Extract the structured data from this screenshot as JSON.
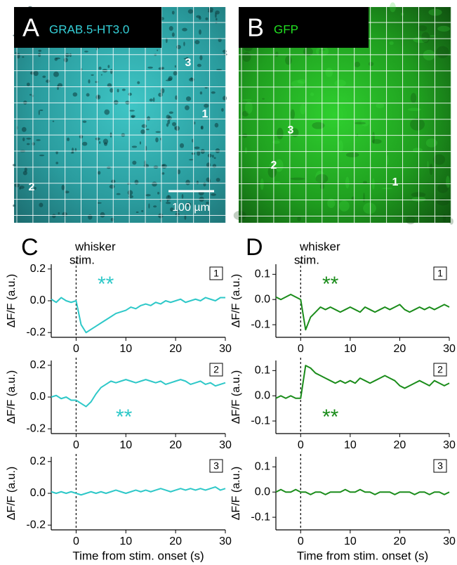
{
  "images": [
    {
      "letter": "A",
      "label": "GRAB.5-HT3.0",
      "rois": [
        "3",
        "1",
        "2"
      ],
      "scale_bar": "100 µm"
    },
    {
      "letter": "B",
      "label": "GFP",
      "rois": [
        "3",
        "2",
        "1"
      ]
    }
  ],
  "chart_data": [
    {
      "type": "line",
      "panel_label": "C",
      "annotation": [
        "whisker",
        "stim."
      ],
      "roi_label": "1",
      "significance": "**",
      "ylabel": "ΔF/F (a.u.)",
      "x": [
        -5,
        -4,
        -3,
        -2,
        -1,
        0,
        1,
        2,
        3,
        4,
        5,
        6,
        7,
        8,
        9,
        10,
        11,
        12,
        13,
        14,
        15,
        16,
        17,
        18,
        19,
        20,
        21,
        22,
        23,
        24,
        25,
        26,
        27,
        28,
        29,
        30
      ],
      "series": [
        {
          "color": "#2ec8c8",
          "values": [
            0.01,
            -0.01,
            0.02,
            0.0,
            -0.01,
            0.0,
            -0.15,
            -0.2,
            -0.18,
            -0.16,
            -0.14,
            -0.12,
            -0.1,
            -0.08,
            -0.07,
            -0.06,
            -0.04,
            -0.05,
            -0.03,
            -0.02,
            -0.03,
            -0.01,
            -0.02,
            0.0,
            -0.01,
            0.0,
            0.01,
            -0.01,
            0.0,
            0.01,
            0.0,
            0.02,
            0.01,
            0.0,
            0.02,
            0.02
          ]
        }
      ],
      "xlim": [
        -5,
        30
      ],
      "xticks": [
        0,
        10,
        20,
        30
      ],
      "ylim": [
        -0.23,
        0.23
      ],
      "yticks": [
        -0.2,
        {
          "value": 0,
          "label": "0.0"
        },
        0.2
      ],
      "stim_onset": 0
    },
    {
      "type": "line",
      "roi_label": "2",
      "significance": "**",
      "ylabel": "ΔF/F (a.u.)",
      "x": [
        -5,
        -4,
        -3,
        -2,
        -1,
        0,
        1,
        2,
        3,
        4,
        5,
        6,
        7,
        8,
        9,
        10,
        11,
        12,
        13,
        14,
        15,
        16,
        17,
        18,
        19,
        20,
        21,
        22,
        23,
        24,
        25,
        26,
        27,
        28,
        29,
        30
      ],
      "series": [
        {
          "color": "#2ec8c8",
          "values": [
            0.0,
            0.01,
            -0.01,
            0.0,
            -0.02,
            -0.02,
            -0.04,
            -0.06,
            -0.03,
            0.02,
            0.06,
            0.08,
            0.1,
            0.09,
            0.1,
            0.11,
            0.1,
            0.09,
            0.1,
            0.11,
            0.1,
            0.09,
            0.1,
            0.08,
            0.09,
            0.1,
            0.11,
            0.1,
            0.08,
            0.09,
            0.1,
            0.08,
            0.09,
            0.07,
            0.08,
            0.09
          ]
        }
      ],
      "xlim": [
        -5,
        30
      ],
      "xticks": [
        0,
        10,
        20,
        30
      ],
      "ylim": [
        -0.23,
        0.23
      ],
      "yticks": [
        -0.2,
        {
          "value": 0,
          "label": "0.0"
        },
        0.2
      ],
      "stim_onset": 0
    },
    {
      "type": "line",
      "roi_label": "3",
      "ylabel": "ΔF/F (a.u.)",
      "xlabel": "Time from stim. onset (s)",
      "x": [
        -5,
        -4,
        -3,
        -2,
        -1,
        0,
        1,
        2,
        3,
        4,
        5,
        6,
        7,
        8,
        9,
        10,
        11,
        12,
        13,
        14,
        15,
        16,
        17,
        18,
        19,
        20,
        21,
        22,
        23,
        24,
        25,
        26,
        27,
        28,
        29,
        30
      ],
      "series": [
        {
          "color": "#2ec8c8",
          "values": [
            0.01,
            0.0,
            0.01,
            0.0,
            0.01,
            0.0,
            -0.01,
            0.0,
            0.01,
            0.0,
            0.01,
            0.0,
            0.01,
            0.02,
            0.01,
            0.0,
            0.01,
            0.02,
            0.01,
            0.02,
            0.01,
            0.02,
            0.03,
            0.02,
            0.01,
            0.02,
            0.03,
            0.02,
            0.03,
            0.02,
            0.03,
            0.02,
            0.03,
            0.04,
            0.02,
            0.03
          ]
        }
      ],
      "xlim": [
        -5,
        30
      ],
      "xticks": [
        0,
        10,
        20,
        30
      ],
      "ylim": [
        -0.23,
        0.23
      ],
      "yticks": [
        -0.2,
        {
          "value": 0,
          "label": "0.0"
        },
        0.2
      ],
      "stim_onset": 0
    },
    {
      "type": "line",
      "panel_label": "D",
      "annotation": [
        "whisker",
        "stim."
      ],
      "roi_label": "1",
      "significance": "**",
      "ylabel": "ΔF/F (a.u.)",
      "x": [
        -5,
        -4,
        -3,
        -2,
        -1,
        0,
        1,
        2,
        3,
        4,
        5,
        6,
        7,
        8,
        9,
        10,
        11,
        12,
        13,
        14,
        15,
        16,
        17,
        18,
        19,
        20,
        21,
        22,
        23,
        24,
        25,
        26,
        27,
        28,
        29,
        30
      ],
      "series": [
        {
          "color": "#1a8c1a",
          "values": [
            0.01,
            0.0,
            0.01,
            0.02,
            0.01,
            0.0,
            -0.12,
            -0.07,
            -0.05,
            -0.03,
            -0.04,
            -0.03,
            -0.04,
            -0.05,
            -0.04,
            -0.03,
            -0.04,
            -0.05,
            -0.03,
            -0.04,
            -0.05,
            -0.04,
            -0.03,
            -0.04,
            -0.03,
            -0.02,
            -0.04,
            -0.05,
            -0.04,
            -0.03,
            -0.04,
            -0.03,
            -0.04,
            -0.03,
            -0.02,
            -0.03
          ]
        }
      ],
      "xlim": [
        -5,
        30
      ],
      "xticks": [
        0,
        10,
        20,
        30
      ],
      "ylim": [
        -0.15,
        0.14
      ],
      "yticks": [
        -0.1,
        {
          "value": 0,
          "label": "0.0"
        },
        0.1
      ],
      "stim_onset": 0
    },
    {
      "type": "line",
      "roi_label": "2",
      "significance": "**",
      "ylabel": "ΔF/F (a.u.)",
      "x": [
        -5,
        -4,
        -3,
        -2,
        -1,
        0,
        1,
        2,
        3,
        4,
        5,
        6,
        7,
        8,
        9,
        10,
        11,
        12,
        13,
        14,
        15,
        16,
        17,
        18,
        19,
        20,
        21,
        22,
        23,
        24,
        25,
        26,
        27,
        28,
        29,
        30
      ],
      "series": [
        {
          "color": "#1a8c1a",
          "values": [
            -0.01,
            0.0,
            -0.01,
            0.0,
            -0.01,
            -0.01,
            0.12,
            0.11,
            0.09,
            0.08,
            0.07,
            0.06,
            0.05,
            0.06,
            0.05,
            0.06,
            0.05,
            0.07,
            0.06,
            0.05,
            0.06,
            0.07,
            0.08,
            0.07,
            0.06,
            0.04,
            0.03,
            0.04,
            0.05,
            0.06,
            0.05,
            0.04,
            0.06,
            0.05,
            0.04,
            0.05
          ]
        }
      ],
      "xlim": [
        -5,
        30
      ],
      "xticks": [
        0,
        10,
        20,
        30
      ],
      "ylim": [
        -0.15,
        0.14
      ],
      "yticks": [
        -0.1,
        {
          "value": 0,
          "label": "0.0"
        },
        0.1
      ],
      "stim_onset": 0
    },
    {
      "type": "line",
      "roi_label": "3",
      "ylabel": "ΔF/F (a.u.)",
      "xlabel": "Time from stim. onset (s)",
      "x": [
        -5,
        -4,
        -3,
        -2,
        -1,
        0,
        1,
        2,
        3,
        4,
        5,
        6,
        7,
        8,
        9,
        10,
        11,
        12,
        13,
        14,
        15,
        16,
        17,
        18,
        19,
        20,
        21,
        22,
        23,
        24,
        25,
        26,
        27,
        28,
        29,
        30
      ],
      "series": [
        {
          "color": "#1a8c1a",
          "values": [
            0.0,
            0.01,
            0.0,
            0.0,
            0.01,
            0.0,
            0.0,
            -0.01,
            0.0,
            0.0,
            -0.01,
            0.0,
            0.0,
            0.0,
            0.01,
            0.0,
            0.0,
            0.01,
            0.0,
            0.0,
            -0.01,
            0.0,
            0.0,
            0.0,
            -0.01,
            0.0,
            0.0,
            0.0,
            -0.01,
            0.0,
            0.0,
            -0.01,
            0.0,
            0.0,
            -0.01,
            0.0
          ]
        }
      ],
      "xlim": [
        -5,
        30
      ],
      "xticks": [
        0,
        10,
        20,
        30
      ],
      "ylim": [
        -0.15,
        0.14
      ],
      "yticks": [
        -0.1,
        {
          "value": 0,
          "label": "0.0"
        },
        0.1
      ],
      "stim_onset": 0
    }
  ]
}
